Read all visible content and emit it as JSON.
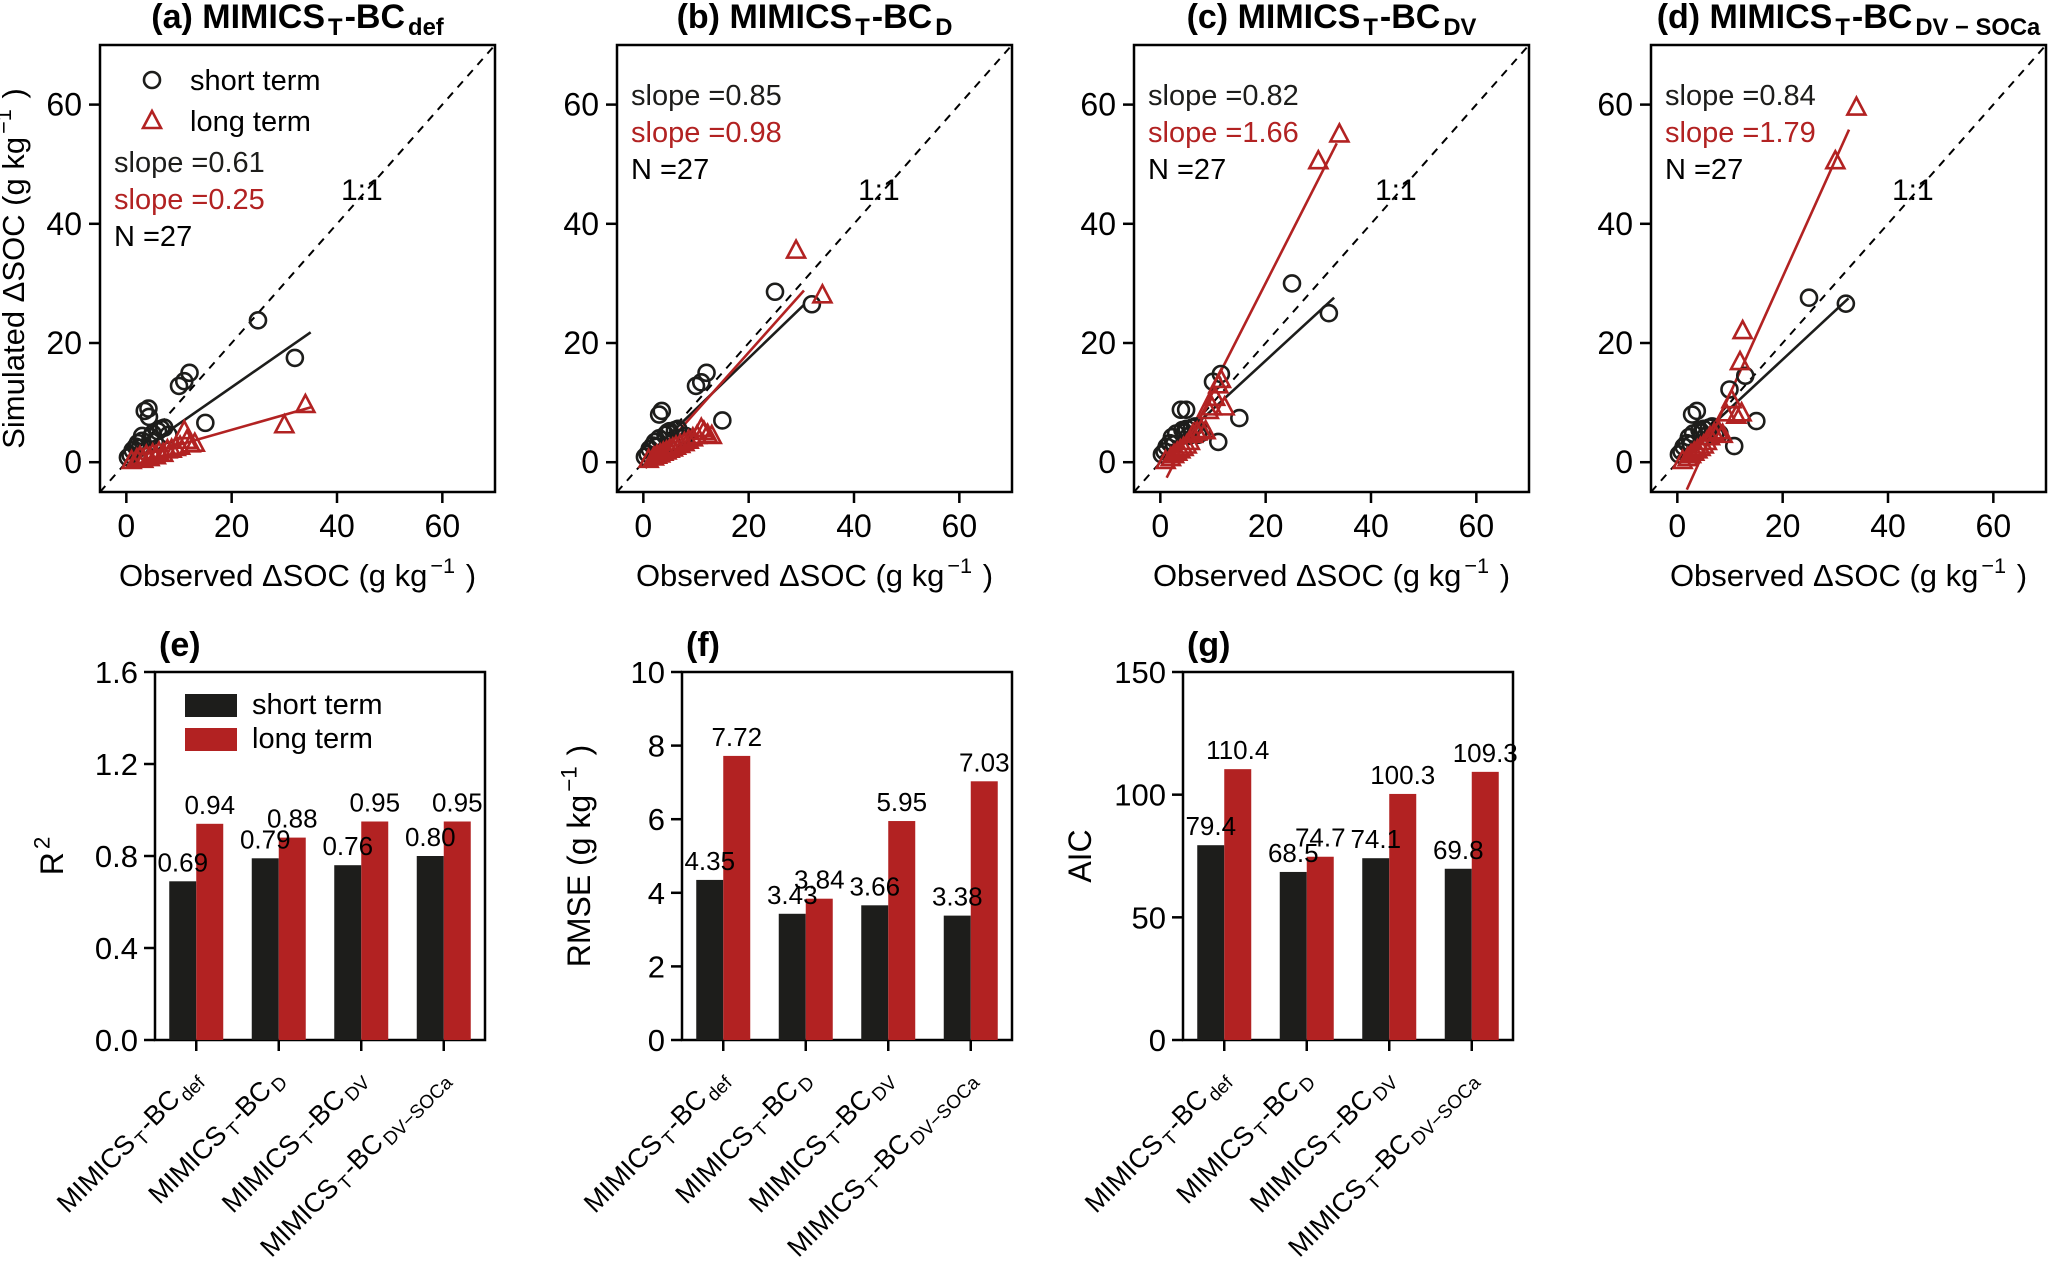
{
  "figure": {
    "colors": {
      "short_term": "#1d1d1b",
      "long_term": "#b22222",
      "axis": "#000000",
      "background": "#ffffff"
    },
    "legend": {
      "short_label": "short term",
      "long_label": "long term"
    },
    "scatter_axes": {
      "xlabel_segments": [
        {
          "t": "Observed ΔSOC (g kg"
        },
        {
          "t": "−1",
          "s": 1
        },
        {
          "t": " )"
        }
      ],
      "ylabel_segments": [
        {
          "t": "Simulated ΔSOC (g kg"
        },
        {
          "t": "−1",
          "s": 1
        },
        {
          "t": " )"
        }
      ],
      "x_ticks": [
        0,
        20,
        40,
        60
      ],
      "y_ticks": [
        0,
        20,
        40,
        60
      ],
      "xlim": [
        -5,
        70
      ],
      "ylim": [
        -5,
        70
      ],
      "identity_label": "1:1"
    },
    "bar_categories": [
      [
        {
          "t": "MIMICS"
        },
        {
          "t": "T",
          "s": 2
        },
        {
          "t": "-BC"
        },
        {
          "t": "def",
          "s": 2
        }
      ],
      [
        {
          "t": "MIMICS"
        },
        {
          "t": "T",
          "s": 2
        },
        {
          "t": "-BC"
        },
        {
          "t": "D",
          "s": 2
        }
      ],
      [
        {
          "t": "MIMICS"
        },
        {
          "t": "T",
          "s": 2
        },
        {
          "t": "-BC"
        },
        {
          "t": "DV",
          "s": 2
        }
      ],
      [
        {
          "t": "MIMICS"
        },
        {
          "t": "T",
          "s": 2
        },
        {
          "t": "-BC"
        },
        {
          "t": "DV−SOCa",
          "s": 2
        }
      ]
    ]
  },
  "chart_data": [
    {
      "type": "scatter",
      "id": "a",
      "title_segments": [
        {
          "t": "(a) MIMICS"
        },
        {
          "t": "T",
          "s": 2
        },
        {
          "t": "-BC"
        },
        {
          "t": "def",
          "s": 2
        }
      ],
      "has_legend": true,
      "annotations": {
        "slope_short": "slope =0.61",
        "slope_long": "slope =0.25",
        "n": "N =27"
      },
      "fit_short": [
        [
          0,
          0.3
        ],
        [
          35,
          21.8
        ]
      ],
      "fit_long": [
        [
          0,
          0.4
        ],
        [
          35,
          9.2
        ]
      ],
      "points_short": [
        [
          0.3,
          0.8
        ],
        [
          0.8,
          1.2
        ],
        [
          1.2,
          2.0
        ],
        [
          1.8,
          2.6
        ],
        [
          2.2,
          3.2
        ],
        [
          2.6,
          2.4
        ],
        [
          3.0,
          3.6
        ],
        [
          3.0,
          4.4
        ],
        [
          3.5,
          8.6
        ],
        [
          4.2,
          9.0
        ],
        [
          4.3,
          7.6
        ],
        [
          4.6,
          4.2
        ],
        [
          5.0,
          4.8
        ],
        [
          5.4,
          3.4
        ],
        [
          6.0,
          5.2
        ],
        [
          6.6,
          5.6
        ],
        [
          7.2,
          5.8
        ],
        [
          8.0,
          4.6
        ],
        [
          10.0,
          12.8
        ],
        [
          11.0,
          13.6
        ],
        [
          12.0,
          15.0
        ],
        [
          15.0,
          6.6
        ],
        [
          25.0,
          23.8
        ],
        [
          32.0,
          17.5
        ]
      ],
      "points_long": [
        [
          1.0,
          0.2
        ],
        [
          2.0,
          0.5
        ],
        [
          2.6,
          0.9
        ],
        [
          3.2,
          0.4
        ],
        [
          3.8,
          1.1
        ],
        [
          4.4,
          0.7
        ],
        [
          5.0,
          1.3
        ],
        [
          5.6,
          1.0
        ],
        [
          6.2,
          1.6
        ],
        [
          7.0,
          1.4
        ],
        [
          7.8,
          2.0
        ],
        [
          8.6,
          2.1
        ],
        [
          9.4,
          2.4
        ],
        [
          10.2,
          2.6
        ],
        [
          11.0,
          5.2
        ],
        [
          11.5,
          3.6
        ],
        [
          12.2,
          3.0
        ],
        [
          13.0,
          3.1
        ],
        [
          30.0,
          6.2
        ],
        [
          34.0,
          9.6
        ]
      ]
    },
    {
      "type": "scatter",
      "id": "b",
      "title_segments": [
        {
          "t": "(b) MIMICS"
        },
        {
          "t": "T",
          "s": 2
        },
        {
          "t": "-BC"
        },
        {
          "t": "D",
          "s": 2
        }
      ],
      "has_legend": false,
      "annotations": {
        "slope_short": "slope =0.85",
        "slope_long": "slope =0.98",
        "n": "N =27"
      },
      "fit_short": [
        [
          0,
          0.4
        ],
        [
          30.5,
          26.4
        ]
      ],
      "fit_long": [
        [
          0.4,
          -1.0
        ],
        [
          30.5,
          28.8
        ]
      ],
      "points_short": [
        [
          0.3,
          0.9
        ],
        [
          0.8,
          1.4
        ],
        [
          1.2,
          2.2
        ],
        [
          1.8,
          2.8
        ],
        [
          2.2,
          3.4
        ],
        [
          2.6,
          2.6
        ],
        [
          3.0,
          4.0
        ],
        [
          3.0,
          8.0
        ],
        [
          3.5,
          8.6
        ],
        [
          4.2,
          4.6
        ],
        [
          4.6,
          5.0
        ],
        [
          5.0,
          5.2
        ],
        [
          5.4,
          3.2
        ],
        [
          6.0,
          5.4
        ],
        [
          6.6,
          5.6
        ],
        [
          7.2,
          4.0
        ],
        [
          8.0,
          4.4
        ],
        [
          10.0,
          12.8
        ],
        [
          11.0,
          13.4
        ],
        [
          12.0,
          15.0
        ],
        [
          15.0,
          7.0
        ],
        [
          25.0,
          28.6
        ],
        [
          32.0,
          26.5
        ]
      ],
      "points_long": [
        [
          1.0,
          0.4
        ],
        [
          2.0,
          0.8
        ],
        [
          2.6,
          1.1
        ],
        [
          3.2,
          1.3
        ],
        [
          3.8,
          1.6
        ],
        [
          4.4,
          1.8
        ],
        [
          5.0,
          2.1
        ],
        [
          5.6,
          2.3
        ],
        [
          6.2,
          2.6
        ],
        [
          7.0,
          2.9
        ],
        [
          7.8,
          3.2
        ],
        [
          8.6,
          3.6
        ],
        [
          9.4,
          4.0
        ],
        [
          10.2,
          4.4
        ],
        [
          11.0,
          5.6
        ],
        [
          11.5,
          5.1
        ],
        [
          12.2,
          4.6
        ],
        [
          13.0,
          4.4
        ],
        [
          29.0,
          35.5
        ],
        [
          34.0,
          28.0
        ]
      ]
    },
    {
      "type": "scatter",
      "id": "c",
      "title_segments": [
        {
          "t": "(c) MIMICS"
        },
        {
          "t": "T",
          "s": 2
        },
        {
          "t": "-BC"
        },
        {
          "t": "DV",
          "s": 2
        }
      ],
      "has_legend": false,
      "annotations": {
        "slope_short": "slope =0.82",
        "slope_long": "slope =1.66",
        "n": "N =27"
      },
      "fit_short": [
        [
          0,
          0.8
        ],
        [
          33,
          27.6
        ]
      ],
      "fit_long": [
        [
          1.2,
          -2.6
        ],
        [
          33.5,
          53.5
        ]
      ],
      "points_short": [
        [
          0.3,
          1.3
        ],
        [
          0.8,
          1.8
        ],
        [
          1.2,
          2.6
        ],
        [
          1.8,
          3.2
        ],
        [
          2.2,
          4.2
        ],
        [
          2.6,
          3.0
        ],
        [
          3.0,
          4.8
        ],
        [
          3.9,
          8.8
        ],
        [
          4.9,
          8.8
        ],
        [
          4.2,
          5.4
        ],
        [
          4.6,
          5.0
        ],
        [
          5.0,
          5.6
        ],
        [
          5.4,
          4.4
        ],
        [
          6.0,
          5.8
        ],
        [
          6.6,
          6.0
        ],
        [
          7.2,
          4.6
        ],
        [
          8.0,
          5.0
        ],
        [
          10.0,
          13.5
        ],
        [
          11.5,
          14.8
        ],
        [
          11.0,
          3.4
        ],
        [
          15.0,
          7.4
        ],
        [
          25.0,
          30.0
        ],
        [
          32.0,
          25.0
        ]
      ],
      "points_long": [
        [
          1.0,
          0.2
        ],
        [
          2.0,
          0.7
        ],
        [
          2.6,
          1.2
        ],
        [
          3.2,
          1.6
        ],
        [
          3.8,
          2.0
        ],
        [
          4.4,
          2.4
        ],
        [
          5.0,
          2.8
        ],
        [
          5.6,
          3.4
        ],
        [
          6.2,
          4.6
        ],
        [
          7.0,
          5.0
        ],
        [
          7.8,
          5.4
        ],
        [
          8.6,
          5.2
        ],
        [
          9.2,
          8.6
        ],
        [
          9.8,
          9.2
        ],
        [
          10.4,
          10.8
        ],
        [
          11.0,
          12.9
        ],
        [
          11.5,
          13.8
        ],
        [
          12.2,
          9.2
        ],
        [
          30.0,
          50.5
        ],
        [
          34.0,
          55.0
        ]
      ]
    },
    {
      "type": "scatter",
      "id": "d",
      "title_segments": [
        {
          "t": "(d) MIMICS"
        },
        {
          "t": "T",
          "s": 2
        },
        {
          "t": "-BC"
        },
        {
          "t": "DV − SOCa",
          "s": 2
        }
      ],
      "has_legend": false,
      "annotations": {
        "slope_short": "slope =0.84",
        "slope_long": "slope =1.79",
        "n": "N =27"
      },
      "fit_short": [
        [
          0,
          0.8
        ],
        [
          32.5,
          27.5
        ]
      ],
      "fit_long": [
        [
          1.8,
          -4.6
        ],
        [
          32.6,
          55.8
        ]
      ],
      "points_short": [
        [
          0.3,
          1.3
        ],
        [
          0.8,
          1.8
        ],
        [
          1.2,
          2.6
        ],
        [
          1.8,
          3.2
        ],
        [
          2.2,
          4.2
        ],
        [
          2.6,
          3.0
        ],
        [
          3.0,
          4.8
        ],
        [
          2.8,
          8.0
        ],
        [
          3.7,
          8.6
        ],
        [
          4.2,
          5.4
        ],
        [
          4.6,
          5.0
        ],
        [
          5.0,
          5.6
        ],
        [
          5.4,
          4.4
        ],
        [
          6.0,
          5.8
        ],
        [
          6.6,
          6.0
        ],
        [
          7.2,
          4.6
        ],
        [
          8.0,
          4.8
        ],
        [
          9.9,
          12.2
        ],
        [
          12.9,
          14.5
        ],
        [
          10.8,
          2.7
        ],
        [
          15.0,
          6.9
        ],
        [
          25.0,
          27.6
        ],
        [
          32.0,
          26.6
        ]
      ],
      "points_long": [
        [
          1.0,
          0.2
        ],
        [
          2.0,
          0.7
        ],
        [
          2.6,
          1.2
        ],
        [
          3.2,
          1.6
        ],
        [
          3.8,
          2.0
        ],
        [
          4.4,
          2.4
        ],
        [
          5.0,
          2.8
        ],
        [
          5.6,
          3.4
        ],
        [
          6.2,
          4.2
        ],
        [
          7.0,
          4.8
        ],
        [
          7.8,
          5.2
        ],
        [
          8.6,
          4.6
        ],
        [
          9.2,
          8.2
        ],
        [
          10.3,
          10.4
        ],
        [
          11.2,
          7.8
        ],
        [
          11.9,
          16.8
        ],
        [
          12.4,
          22.0
        ],
        [
          12.2,
          8.2
        ],
        [
          30.0,
          50.5
        ],
        [
          34.0,
          59.5
        ]
      ]
    },
    {
      "type": "bar",
      "id": "e",
      "label": "(e)",
      "ylabel_segments": [
        {
          "t": "R"
        },
        {
          "t": "2",
          "s": 1
        }
      ],
      "ymax": 1.6,
      "yticks": [
        0,
        0.4,
        0.8,
        1.2,
        1.6
      ],
      "tick_decimals": 1,
      "has_legend": true,
      "short_values": [
        0.69,
        0.79,
        0.76,
        0.8
      ],
      "short_labels": [
        "0.69",
        "0.79",
        "0.76",
        "0.80"
      ],
      "long_values": [
        0.94,
        0.88,
        0.95,
        0.95
      ],
      "long_labels": [
        "0.94",
        "0.88",
        "0.95",
        "0.95"
      ]
    },
    {
      "type": "bar",
      "id": "f",
      "label": "(f)",
      "ylabel_segments": [
        {
          "t": "RMSE (g kg"
        },
        {
          "t": "−1",
          "s": 1
        },
        {
          "t": " )"
        }
      ],
      "ymax": 10,
      "yticks": [
        0,
        2,
        4,
        6,
        8,
        10
      ],
      "tick_decimals": 0,
      "has_legend": false,
      "short_values": [
        4.35,
        3.43,
        3.66,
        3.38
      ],
      "short_labels": [
        "4.35",
        "3.43",
        "3.66",
        "3.38"
      ],
      "long_values": [
        7.72,
        3.84,
        5.95,
        7.03
      ],
      "long_labels": [
        "7.72",
        "3.84",
        "5.95",
        "7.03"
      ]
    },
    {
      "type": "bar",
      "id": "g",
      "label": "(g)",
      "ylabel_segments": [
        {
          "t": "AIC"
        }
      ],
      "ymax": 150,
      "yticks": [
        0,
        50,
        100,
        150
      ],
      "tick_decimals": 0,
      "has_legend": false,
      "short_values": [
        79.4,
        68.5,
        74.1,
        69.8
      ],
      "short_labels": [
        "79.4",
        "68.5",
        "74.1",
        "69.8"
      ],
      "long_values": [
        110.4,
        74.7,
        100.3,
        109.3
      ],
      "long_labels": [
        "110.4",
        "74.7",
        "100.3",
        "109.3"
      ]
    }
  ]
}
